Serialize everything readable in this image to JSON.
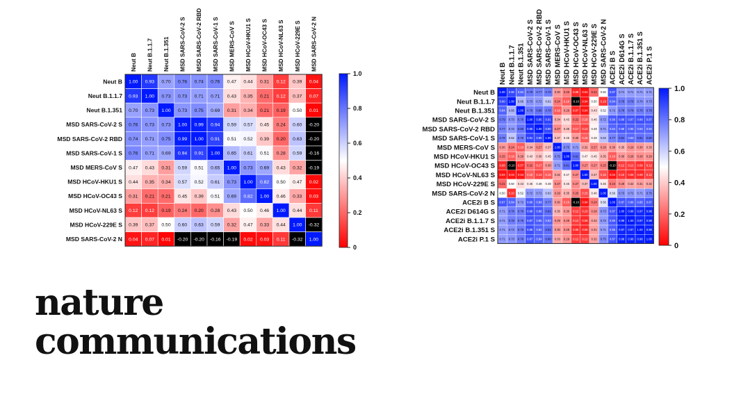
{
  "brand": {
    "line1": "nature",
    "line2": "communications"
  },
  "colors": {
    "high": "#0019ff",
    "mid": "#ffffff",
    "low": "#ff0000",
    "negative": "#000000"
  },
  "chart_data": [
    {
      "type": "heatmap",
      "labels": [
        "Neut B",
        "Neut B.1.1.7",
        "Neut B.1.351",
        "MSD SARS-CoV-2 S",
        "MSD SARS-CoV-2 RBD",
        "MSD SARS-CoV-1 S",
        "MSD MERS-CoV S",
        "MSD HCoV-HKU1 S",
        "MSD HCoV-OC43 S",
        "MSD HCoV-NL63 S",
        "MSD HCoV-229E S",
        "MSD SARS-CoV-2 N"
      ],
      "values": [
        [
          1.0,
          0.93,
          0.7,
          0.76,
          0.74,
          0.76,
          0.47,
          0.44,
          0.31,
          0.12,
          0.39,
          0.04
        ],
        [
          0.93,
          1.0,
          0.73,
          0.73,
          0.71,
          0.71,
          0.43,
          0.35,
          0.21,
          0.12,
          0.37,
          0.07
        ],
        [
          0.7,
          0.73,
          1.0,
          0.73,
          0.75,
          0.69,
          0.31,
          0.34,
          0.21,
          0.19,
          0.5,
          0.01
        ],
        [
          0.76,
          0.73,
          0.73,
          1.0,
          0.99,
          0.94,
          0.59,
          0.57,
          0.45,
          0.24,
          0.6,
          -0.2
        ],
        [
          0.74,
          0.71,
          0.75,
          0.99,
          1.0,
          0.91,
          0.51,
          0.52,
          0.39,
          0.2,
          0.63,
          -0.2
        ],
        [
          0.76,
          0.71,
          0.69,
          0.94,
          0.91,
          1.0,
          0.65,
          0.61,
          0.51,
          0.28,
          0.59,
          -0.16
        ],
        [
          0.47,
          0.43,
          0.31,
          0.59,
          0.51,
          0.65,
          1.0,
          0.73,
          0.69,
          0.43,
          0.32,
          -0.19
        ],
        [
          0.44,
          0.35,
          0.34,
          0.57,
          0.52,
          0.61,
          0.73,
          1.0,
          0.82,
          0.5,
          0.47,
          0.02
        ],
        [
          0.31,
          0.21,
          0.21,
          0.45,
          0.39,
          0.51,
          0.69,
          0.82,
          1.0,
          0.46,
          0.33,
          0.03
        ],
        [
          0.12,
          0.12,
          0.19,
          0.24,
          0.2,
          0.28,
          0.43,
          0.5,
          0.46,
          1.0,
          0.44,
          0.11
        ],
        [
          0.39,
          0.37,
          0.5,
          0.6,
          0.63,
          0.59,
          0.32,
          0.47,
          0.33,
          0.44,
          1.0,
          -0.32
        ],
        [
          0.04,
          0.07,
          0.01,
          -0.2,
          -0.2,
          -0.16,
          -0.19,
          0.02,
          0.03,
          0.11,
          -0.32,
          1.0
        ]
      ],
      "colorbar": {
        "range": [
          0,
          1.0
        ],
        "ticks": [
          "1.0",
          "0.8",
          "0.6",
          "0.4",
          "0.2",
          "0"
        ]
      }
    },
    {
      "type": "heatmap",
      "row_labels": [
        "Neut B",
        "Neut B.1.1.7",
        "Neut B.1.351",
        "MSD SARS-CoV-2 S",
        "MSD SARS-CoV-2 RBD",
        "MSD SARS-CoV-1 S",
        "MSD MERS-CoV S",
        "MSD HCoV-HKU1 S",
        "MSD HCoV-OC43 S",
        "MSD HCoV-NL63 S",
        "MSD HCoV-229E S",
        "MSD SARS-CoV-2 N",
        "ACE2i B S",
        "ACE2i D614G S",
        "ACE2i B.1.1.7 S",
        "ACE2i B.1.351 S",
        "ACE2i P.1 S"
      ],
      "col_labels": [
        "Neut B",
        "Neut B.1.1.7",
        "Neut B.1.351",
        "MSD SARS-CoV-2 S",
        "MSD SARS-CoV-2 RBD",
        "MSD SARS-CoV-1 S",
        "MSD MERS-CoV S",
        "MSD HCoV-HKU1 S",
        "MSD HCoV-OC43 S",
        "MSD HCoV-NL63 S",
        "MSD HCoV-229E S",
        "MSD SARS-CoV-2 N",
        "ACE2i B S",
        "ACE2i D614G S",
        "ACE2i B.1.1.7 S",
        "ACE2i B.1.351 S",
        "ACE2i P.1 S"
      ],
      "values": [
        [
          1.0,
          0.9,
          0.84,
          0.79,
          0.77,
          0.78,
          0.3,
          0.25,
          0.08,
          0.04,
          0.21,
          0.5,
          0.87,
          0.71,
          0.71,
          0.71,
          0.71
        ],
        [
          0.9,
          1.0,
          0.66,
          0.73,
          0.72,
          0.62,
          0.24,
          0.18,
          -0.1,
          0.04,
          0.5,
          0.1,
          0.84,
          0.78,
          0.78,
          0.74,
          0.73
        ],
        [
          0.84,
          0.66,
          1.0,
          0.78,
          0.8,
          0.78,
          0.18,
          0.29,
          0.07,
          0.04,
          0.43,
          0.52,
          0.72,
          0.78,
          0.78,
          0.78,
          0.78
        ],
        [
          0.79,
          0.73,
          0.78,
          1.0,
          0.95,
          0.91,
          0.34,
          0.43,
          0.22,
          0.18,
          0.46,
          0.72,
          0.86,
          0.88,
          0.87,
          0.88,
          0.87
        ],
        [
          0.77,
          0.72,
          0.8,
          0.95,
          1.0,
          0.9,
          0.27,
          0.38,
          0.17,
          0.13,
          0.48,
          0.71,
          0.84,
          0.86,
          0.85,
          0.84,
          0.84
        ],
        [
          0.78,
          0.62,
          0.78,
          0.91,
          0.9,
          1.0,
          0.37,
          0.45,
          0.3,
          0.18,
          0.48,
          0.63,
          0.77,
          0.81,
          0.83,
          0.81,
          0.8
        ],
        [
          0.3,
          0.24,
          0.18,
          0.34,
          0.27,
          0.37,
          1.0,
          0.75,
          0.71,
          0.32,
          0.27,
          0.29,
          0.3,
          0.35,
          0.29,
          0.3,
          0.33
        ],
        [
          0.25,
          0.18,
          0.29,
          0.43,
          0.38,
          0.45,
          0.75,
          1.0,
          0.81,
          0.47,
          0.45,
          0.35,
          0.18,
          0.3,
          0.28,
          0.28,
          0.29
        ],
        [
          0.08,
          -0.1,
          0.07,
          0.22,
          0.17,
          0.3,
          0.71,
          0.81,
          1.0,
          0.27,
          0.27,
          0.25,
          -0.1,
          0.12,
          0.12,
          0.09,
          0.12
        ],
        [
          0.04,
          0.04,
          0.04,
          0.18,
          0.13,
          0.18,
          0.32,
          0.47,
          0.27,
          1.0,
          0.37,
          0.15,
          0.04,
          0.1,
          0.08,
          0.08,
          0.12
        ],
        [
          0.21,
          0.5,
          0.43,
          0.46,
          0.48,
          0.48,
          0.27,
          0.45,
          0.27,
          0.37,
          1.0,
          0.46,
          0.24,
          0.28,
          0.32,
          0.31,
          0.32
        ],
        [
          0.5,
          0.1,
          0.52,
          0.72,
          0.71,
          0.63,
          0.29,
          0.35,
          0.25,
          0.15,
          0.46,
          1.0,
          0.56,
          0.73,
          0.72,
          0.71,
          0.75
        ],
        [
          0.87,
          0.84,
          0.72,
          0.86,
          0.84,
          0.77,
          0.3,
          0.18,
          -0.1,
          0.04,
          0.24,
          0.56,
          1.0,
          0.87,
          0.86,
          0.85,
          0.87
        ],
        [
          0.71,
          0.78,
          0.78,
          0.88,
          0.86,
          0.81,
          0.35,
          0.3,
          0.12,
          0.1,
          0.28,
          0.73,
          0.87,
          1.0,
          0.98,
          0.97,
          0.98
        ],
        [
          0.71,
          0.78,
          0.78,
          0.87,
          0.85,
          0.83,
          0.29,
          0.28,
          0.12,
          0.08,
          0.32,
          0.72,
          0.86,
          0.98,
          1.0,
          0.97,
          0.98
        ],
        [
          0.71,
          0.74,
          0.78,
          0.88,
          0.84,
          0.81,
          0.3,
          0.28,
          0.09,
          0.08,
          0.31,
          0.71,
          0.85,
          0.97,
          0.97,
          1.0,
          0.98
        ],
        [
          0.71,
          0.73,
          0.78,
          0.87,
          0.84,
          0.8,
          0.33,
          0.29,
          0.12,
          0.12,
          0.32,
          0.75,
          0.87,
          0.98,
          0.98,
          0.98,
          1.0
        ]
      ],
      "colorbar": {
        "range": [
          0,
          1.0
        ],
        "ticks": [
          "1.0",
          "0.8",
          "0.6",
          "0.4",
          "0.2",
          "0"
        ]
      }
    }
  ]
}
